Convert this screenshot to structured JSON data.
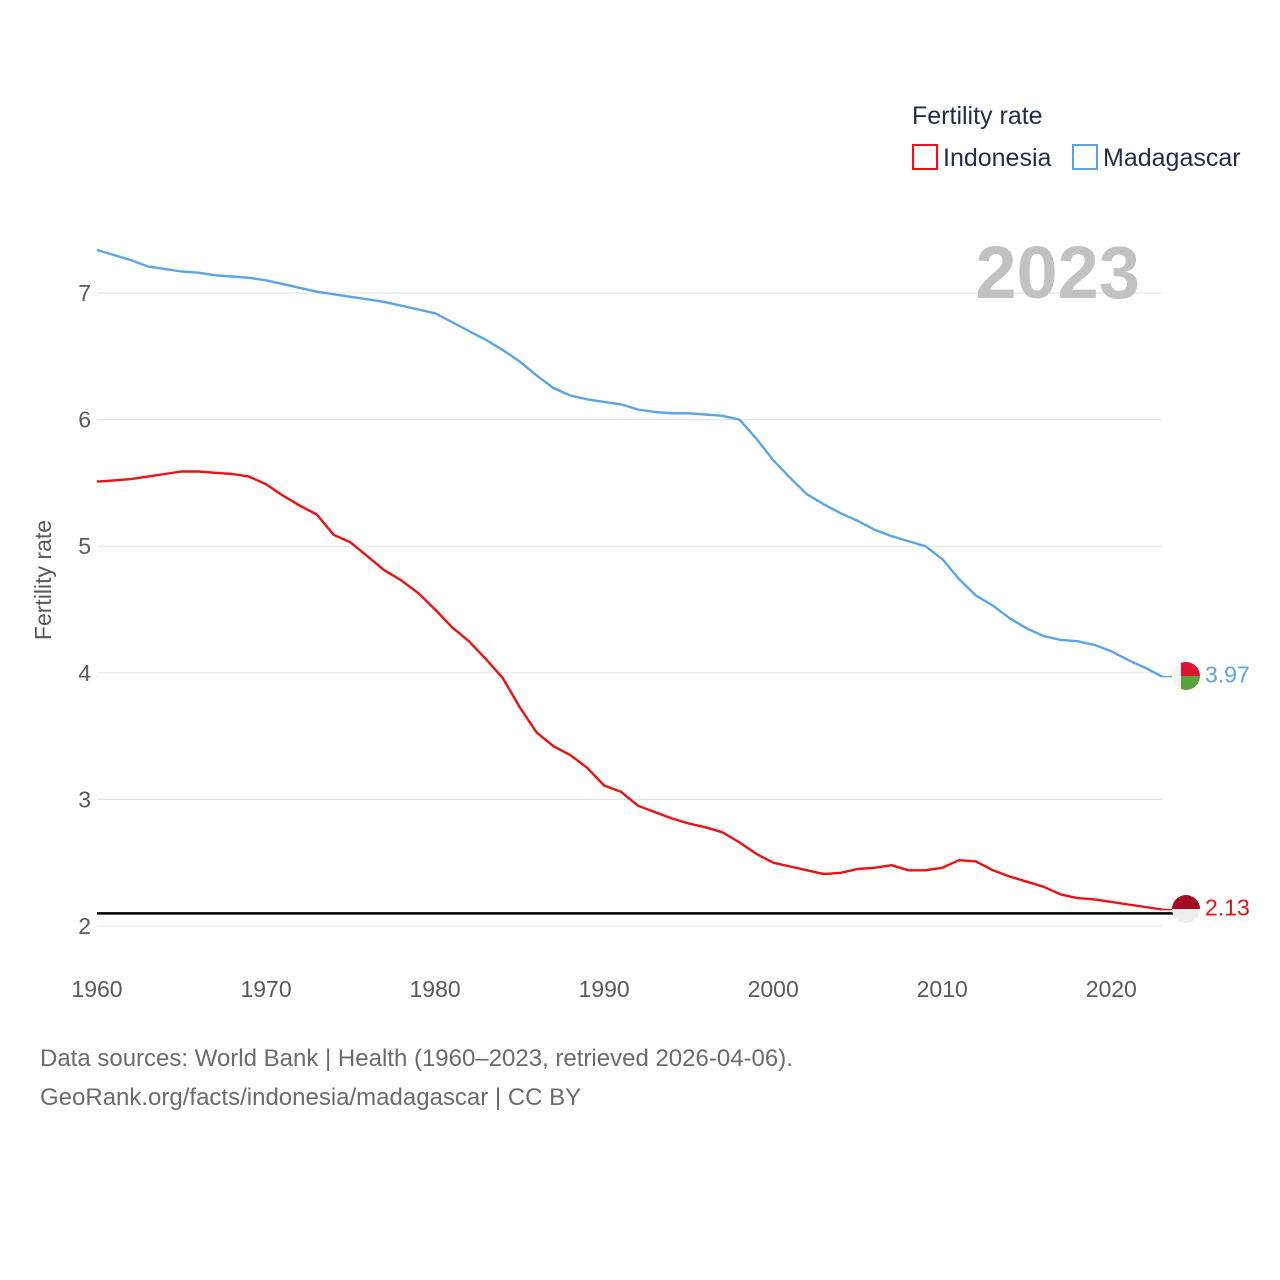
{
  "legend": {
    "title": "Fertility rate"
  },
  "year_label": "2023",
  "reference_line": {
    "value": 2.1,
    "color": "#000000"
  },
  "chart_data": {
    "type": "line",
    "title": "Fertility rate",
    "xlabel": "",
    "ylabel": "Fertility rate",
    "xlim": [
      1960,
      2023
    ],
    "ylim": [
      2,
      7.4
    ],
    "x_ticks": [
      "1960",
      "1970",
      "1980",
      "1990",
      "2000",
      "2010",
      "2020"
    ],
    "y_ticks": [
      "2",
      "3",
      "4",
      "5",
      "6",
      "7"
    ],
    "x": [
      1960,
      1961,
      1962,
      1963,
      1964,
      1965,
      1966,
      1967,
      1968,
      1969,
      1970,
      1971,
      1972,
      1973,
      1974,
      1975,
      1976,
      1977,
      1978,
      1979,
      1980,
      1981,
      1982,
      1983,
      1984,
      1985,
      1986,
      1987,
      1988,
      1989,
      1990,
      1991,
      1992,
      1993,
      1994,
      1995,
      1996,
      1997,
      1998,
      1999,
      2000,
      2001,
      2002,
      2003,
      2004,
      2005,
      2006,
      2007,
      2008,
      2009,
      2010,
      2011,
      2012,
      2013,
      2014,
      2015,
      2016,
      2017,
      2018,
      2019,
      2020,
      2021,
      2022,
      2023
    ],
    "series": [
      {
        "name": "Indonesia",
        "color": "#ee1111",
        "end_label": "2.13",
        "values": [
          5.51,
          5.52,
          5.53,
          5.55,
          5.57,
          5.59,
          5.59,
          5.58,
          5.57,
          5.55,
          5.49,
          5.4,
          5.32,
          5.25,
          5.09,
          5.03,
          4.92,
          4.81,
          4.73,
          4.63,
          4.5,
          4.36,
          4.25,
          4.11,
          3.96,
          3.73,
          3.53,
          3.42,
          3.35,
          3.25,
          3.11,
          3.06,
          2.95,
          2.9,
          2.85,
          2.81,
          2.78,
          2.74,
          2.66,
          2.57,
          2.5,
          2.47,
          2.44,
          2.41,
          2.42,
          2.45,
          2.46,
          2.48,
          2.44,
          2.44,
          2.46,
          2.52,
          2.51,
          2.44,
          2.39,
          2.35,
          2.31,
          2.25,
          2.22,
          2.21,
          2.19,
          2.17,
          2.15,
          2.13
        ]
      },
      {
        "name": "Madagascar",
        "color": "#5ba4e6",
        "end_label": "3.97",
        "values": [
          7.34,
          7.3,
          7.26,
          7.21,
          7.19,
          7.17,
          7.16,
          7.14,
          7.13,
          7.12,
          7.1,
          7.07,
          7.04,
          7.01,
          6.99,
          6.97,
          6.95,
          6.93,
          6.9,
          6.87,
          6.84,
          6.77,
          6.7,
          6.63,
          6.55,
          6.46,
          6.35,
          6.25,
          6.19,
          6.16,
          6.14,
          6.12,
          6.08,
          6.06,
          6.05,
          6.05,
          6.04,
          6.03,
          6.0,
          5.85,
          5.68,
          5.54,
          5.41,
          5.33,
          5.26,
          5.2,
          5.13,
          5.08,
          5.04,
          5.0,
          4.9,
          4.74,
          4.61,
          4.53,
          4.43,
          4.35,
          4.29,
          4.26,
          4.25,
          4.22,
          4.17,
          4.1,
          4.04,
          3.97
        ]
      }
    ]
  },
  "footer": {
    "line1": "Data sources: World Bank | Health (1960–2023, retrieved 2026-04-06).",
    "line2": "GeoRank.org/facts/indonesia/madagascar | CC BY"
  }
}
